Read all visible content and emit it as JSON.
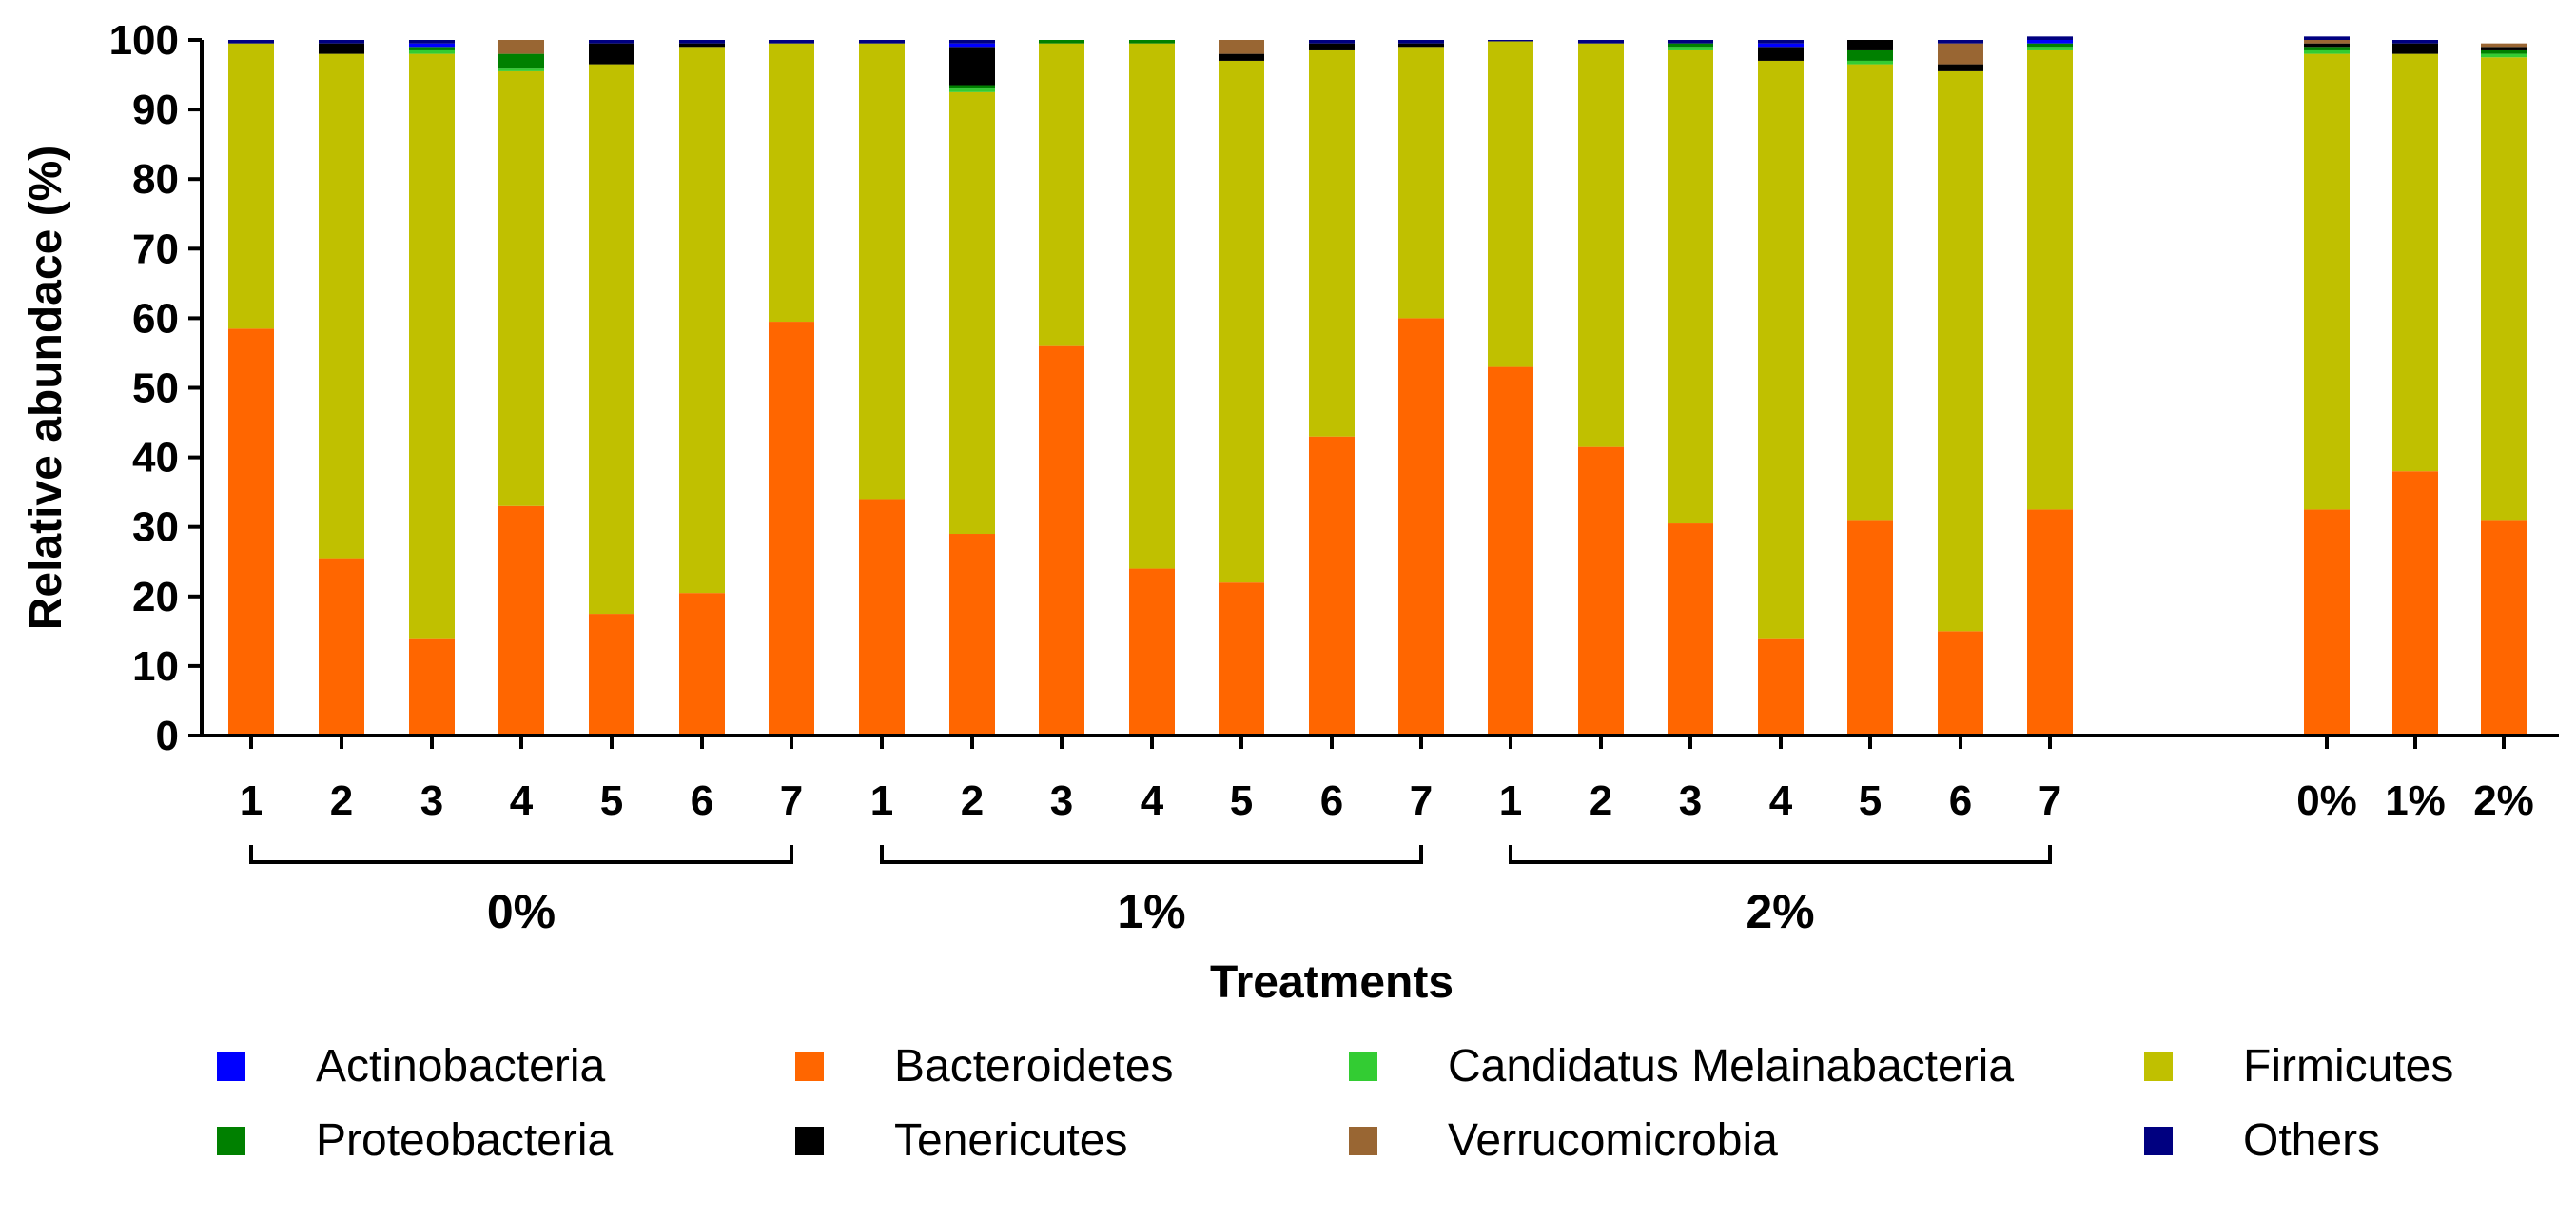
{
  "chart_data": {
    "type": "bar",
    "stacked": true,
    "xlabel": "Treatments",
    "ylabel": "Relative abundace (%)",
    "ylim": [
      0,
      100
    ],
    "yticks": [
      0,
      10,
      20,
      30,
      40,
      50,
      60,
      70,
      80,
      90,
      100
    ],
    "grid": false,
    "legend_position": "bottom",
    "categories": [
      "1",
      "2",
      "3",
      "4",
      "5",
      "6",
      "7",
      "1",
      "2",
      "3",
      "4",
      "5",
      "6",
      "7",
      "1",
      "2",
      "3",
      "4",
      "5",
      "6",
      "7",
      "0%",
      "1%",
      "2%"
    ],
    "groups": [
      {
        "label": "0%",
        "from": 0,
        "to": 6
      },
      {
        "label": "1%",
        "from": 7,
        "to": 13
      },
      {
        "label": "2%",
        "from": 14,
        "to": 20
      }
    ],
    "series": [
      {
        "name": "Bacteroidetes",
        "color": "#FF6600",
        "values": [
          58.5,
          25.5,
          14,
          33,
          17.5,
          20.5,
          59.5,
          34,
          29,
          56,
          24,
          22,
          43,
          60,
          53,
          41.5,
          30.5,
          14,
          31,
          15,
          32.5,
          32.5,
          38,
          31
        ]
      },
      {
        "name": "Firmicutes",
        "color": "#C0C000",
        "values": [
          41,
          72.5,
          84,
          62.5,
          79,
          78.5,
          40,
          65.5,
          63.5,
          43.5,
          75.5,
          75,
          55.5,
          39,
          46.8,
          58,
          68,
          83,
          65.5,
          80.5,
          66,
          65.5,
          60,
          66.5
        ]
      },
      {
        "name": "Candidatus Melainabacteria",
        "color": "#33CC33",
        "values": [
          0,
          0,
          0.5,
          0.5,
          0,
          0,
          0,
          0,
          0.5,
          0,
          0,
          0,
          0,
          0,
          0,
          0,
          0.5,
          0,
          0.5,
          0,
          0.5,
          0.5,
          0,
          0.5
        ]
      },
      {
        "name": "Proteobacteria",
        "color": "#008000",
        "values": [
          0,
          0,
          0.5,
          2,
          0,
          0,
          0,
          0,
          0.5,
          0.5,
          0.5,
          0,
          0,
          0,
          0,
          0,
          0.5,
          0,
          1.5,
          0,
          0.5,
          0.5,
          0,
          0.5
        ]
      },
      {
        "name": "Tenericutes",
        "color": "#000000",
        "values": [
          0,
          1.5,
          0,
          0,
          3,
          0.5,
          0,
          0,
          5.5,
          0,
          0,
          1,
          1,
          0.5,
          0,
          0,
          0,
          2,
          1.5,
          1,
          0,
          0.5,
          1.5,
          0.5
        ]
      },
      {
        "name": "Verrucomicrobia",
        "color": "#996633",
        "values": [
          0,
          0,
          0,
          2,
          0,
          0,
          0,
          0,
          0,
          0,
          0,
          2,
          0,
          0,
          0,
          0,
          0,
          0,
          0,
          3,
          0,
          0.5,
          0,
          0.5
        ]
      },
      {
        "name": "Actinobacteria",
        "color": "#0000FF",
        "values": [
          0,
          0,
          0.5,
          0,
          0,
          0,
          0,
          0,
          0.5,
          0,
          0,
          0,
          0,
          0,
          0,
          0,
          0,
          0.5,
          0,
          0,
          0.5,
          0,
          0,
          0
        ]
      },
      {
        "name": "Others",
        "color": "#000080",
        "values": [
          0.5,
          0.5,
          0.5,
          0,
          0.5,
          0.5,
          0.5,
          0.5,
          0.5,
          0,
          0,
          0,
          0.5,
          0.5,
          0.2,
          0.5,
          0.5,
          0.5,
          0,
          0.5,
          0.5,
          0.5,
          0.5,
          0
        ]
      }
    ],
    "legend": [
      {
        "name": "Actinobacteria",
        "color": "#0000FF"
      },
      {
        "name": "Bacteroidetes",
        "color": "#FF6600"
      },
      {
        "name": "Candidatus Melainabacteria",
        "color": "#33CC33"
      },
      {
        "name": "Firmicutes",
        "color": "#C0C000"
      },
      {
        "name": "Proteobacteria",
        "color": "#008000"
      },
      {
        "name": "Tenericutes",
        "color": "#000000"
      },
      {
        "name": "Verrucomicrobia",
        "color": "#996633"
      },
      {
        "name": "Others",
        "color": "#000080"
      }
    ]
  }
}
